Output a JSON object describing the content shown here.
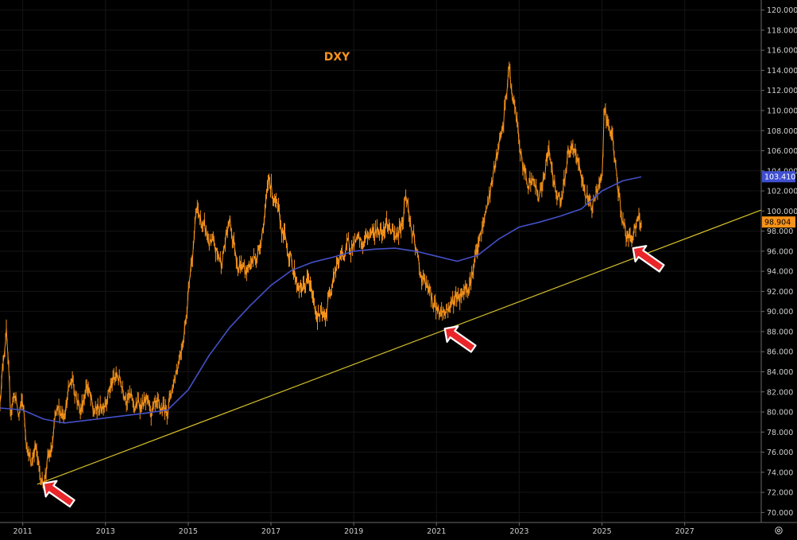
{
  "chart_data": {
    "type": "line",
    "title": "DXY",
    "xlabel": "",
    "ylabel": "",
    "ylim": [
      69,
      121
    ],
    "xlim": [
      2010.45,
      2028.85
    ],
    "y_ticks": [
      "70.000",
      "72.000",
      "74.000",
      "76.000",
      "78.000",
      "80.000",
      "82.000",
      "84.000",
      "86.000",
      "88.000",
      "90.000",
      "92.000",
      "94.000",
      "96.000",
      "98.000",
      "100.000",
      "102.000",
      "104.000",
      "106.000",
      "108.000",
      "110.000",
      "112.000",
      "114.000",
      "116.000",
      "118.000",
      "120.000"
    ],
    "x_ticks": [
      "2011",
      "2013",
      "2015",
      "2017",
      "2019",
      "2021",
      "2023",
      "2025",
      "2027"
    ],
    "grid": false,
    "series": [
      {
        "name": "",
        "color": "#f7931a",
        "style": "weekly price bars",
        "x": [
          2010.45,
          2010.6,
          2010.7,
          2010.8,
          2010.9,
          2011.0,
          2011.1,
          2011.2,
          2011.3,
          2011.4,
          2011.5,
          2011.6,
          2011.7,
          2011.8,
          2011.9,
          2012.0,
          2012.2,
          2012.4,
          2012.55,
          2012.7,
          2012.9,
          2013.1,
          2013.3,
          2013.5,
          2013.7,
          2013.9,
          2014.1,
          2014.3,
          2014.5,
          2014.7,
          2014.8,
          2014.9,
          2015.0,
          2015.1,
          2015.2,
          2015.5,
          2015.8,
          2016.0,
          2016.2,
          2016.4,
          2016.7,
          2016.9,
          2016.95,
          2017.2,
          2017.5,
          2017.7,
          2017.9,
          2018.1,
          2018.3,
          2018.5,
          2018.8,
          2019.0,
          2019.2,
          2019.4,
          2019.6,
          2019.8,
          2020.0,
          2020.2,
          2020.25,
          2020.4,
          2020.6,
          2020.8,
          2021.0,
          2021.2,
          2021.4,
          2021.6,
          2021.8,
          2022.0,
          2022.2,
          2022.4,
          2022.6,
          2022.75,
          2022.9,
          2023.1,
          2023.3,
          2023.5,
          2023.7,
          2023.85,
          2024.0,
          2024.2,
          2024.4,
          2024.6,
          2024.7,
          2024.8,
          2025.0,
          2025.05,
          2025.2,
          2025.35,
          2025.5,
          2025.65,
          2025.8,
          2025.95
        ],
        "values": [
          81.5,
          88.5,
          80,
          82,
          79.5,
          81,
          77,
          74.5,
          77,
          73.8,
          73,
          75,
          76,
          79.5,
          80,
          80.3,
          83.5,
          80,
          83,
          79.8,
          80.5,
          82.5,
          83.5,
          82,
          80.5,
          81,
          80,
          80,
          80.5,
          84,
          86,
          88,
          92,
          96,
          100,
          97,
          95,
          99,
          95,
          94,
          96,
          101,
          103.5,
          99,
          95,
          92,
          93,
          90,
          89,
          94,
          96,
          97,
          96.5,
          98,
          98,
          99,
          97,
          99.5,
          102,
          98,
          94,
          92,
          90.2,
          90,
          91,
          92,
          93,
          96,
          100,
          104,
          108,
          114,
          110,
          104,
          103,
          101.5,
          106,
          103,
          101,
          106,
          105,
          102,
          100.5,
          101,
          103,
          109.5,
          108,
          104,
          99,
          97,
          98.5,
          98.9
        ]
      },
      {
        "name": "",
        "color": "#4450c8",
        "style": "moving average line",
        "x": [
          2010.45,
          2011.0,
          2011.5,
          2012.0,
          2013.0,
          2014.0,
          2014.5,
          2015.0,
          2015.5,
          2016.0,
          2016.5,
          2017.0,
          2017.5,
          2018.0,
          2018.5,
          2019.0,
          2019.5,
          2020.0,
          2020.5,
          2021.0,
          2021.5,
          2022.0,
          2022.5,
          2023.0,
          2023.5,
          2024.0,
          2024.5,
          2025.0,
          2025.5,
          2025.95
        ],
        "values": [
          80.4,
          80.2,
          79.3,
          78.9,
          79.4,
          79.9,
          80.2,
          82.2,
          85.6,
          88.4,
          90.6,
          92.6,
          94.1,
          94.9,
          95.4,
          96.0,
          96.2,
          96.3,
          96.0,
          95.5,
          95.0,
          95.6,
          97.2,
          98.4,
          98.9,
          99.5,
          100.2,
          102.0,
          103.0,
          103.4
        ]
      },
      {
        "name": "",
        "color": "#d4c02a",
        "style": "trendline",
        "x": [
          2011.35,
          2028.85
        ],
        "values": [
          72.8,
          100.1
        ]
      }
    ],
    "annotations": [
      {
        "type": "arrow",
        "color": "#e8262a",
        "x": 2011.5,
        "y": 72.9
      },
      {
        "type": "arrow",
        "color": "#e8262a",
        "x": 2021.2,
        "y": 88.3
      },
      {
        "type": "arrow",
        "color": "#e8262a",
        "x": 2025.75,
        "y": 96.3
      }
    ],
    "price_labels": [
      {
        "value": 103.41,
        "text": "103.410",
        "bg": "#3f4fd0",
        "fg": "#ffffff"
      },
      {
        "value": 98.904,
        "text": "98.904",
        "bg": "#f7931a",
        "fg": "#000000"
      }
    ]
  },
  "settings_icon": "gear-icon"
}
